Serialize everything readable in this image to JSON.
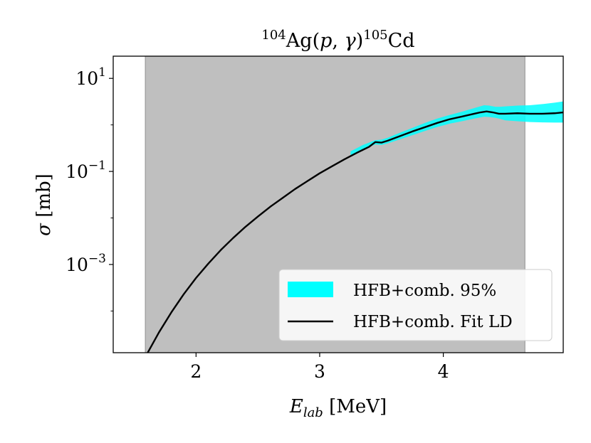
{
  "chart_data": {
    "type": "line",
    "title": "104Ag(p,γ)105Cd",
    "xlabel": "E_lab [MeV]",
    "ylabel": "σ [mb]",
    "x_scale": "linear",
    "y_scale": "log",
    "xlim": [
      1.33,
      4.97
    ],
    "ylim": [
      1.27e-05,
      30
    ],
    "x_ticks": [
      {
        "value": 2,
        "label": "2"
      },
      {
        "value": 3,
        "label": "3"
      },
      {
        "value": 4,
        "label": "4"
      }
    ],
    "y_ticks": [
      {
        "value": 10,
        "base": "10",
        "exp": "1"
      },
      {
        "value": 0.1,
        "base": "10",
        "exp": "−1"
      },
      {
        "value": 0.001,
        "base": "10",
        "exp": "−3"
      }
    ],
    "grid": false,
    "legend_position": "lower-right",
    "shaded_region": {
      "x_start": 1.59,
      "x_end": 4.66,
      "color": "#808080"
    },
    "series": [
      {
        "name": "HFB+comb. 95%",
        "kind": "band",
        "color": "#00ffff",
        "x": [
          3.25,
          3.35,
          3.45,
          3.5,
          3.55,
          3.65,
          3.75,
          3.85,
          3.95,
          4.05,
          4.15,
          4.25,
          4.33,
          4.37,
          4.42,
          4.46,
          4.5,
          4.6,
          4.7,
          4.8,
          4.9,
          4.97
        ],
        "lower": [
          0.22,
          0.3,
          0.38,
          0.37,
          0.4,
          0.49,
          0.6,
          0.74,
          0.9,
          1.06,
          1.2,
          1.37,
          1.5,
          1.48,
          1.42,
          1.35,
          1.25,
          1.2,
          1.15,
          1.13,
          1.12,
          1.12
        ],
        "upper": [
          0.27,
          0.37,
          0.47,
          0.48,
          0.53,
          0.68,
          0.86,
          1.1,
          1.37,
          1.63,
          1.92,
          2.3,
          2.65,
          2.6,
          2.45,
          2.45,
          2.5,
          2.6,
          2.65,
          2.8,
          3.0,
          3.2
        ]
      },
      {
        "name": "HFB+comb. Fit LD",
        "kind": "line",
        "color": "#000000",
        "x": [
          1.6,
          1.7,
          1.8,
          1.9,
          2.0,
          2.1,
          2.2,
          2.3,
          2.4,
          2.5,
          2.6,
          2.7,
          2.8,
          2.9,
          3.0,
          3.1,
          3.2,
          3.3,
          3.4,
          3.45,
          3.5,
          3.55,
          3.65,
          3.75,
          3.85,
          3.95,
          4.05,
          4.15,
          4.25,
          4.3,
          4.35,
          4.4,
          4.45,
          4.5,
          4.6,
          4.7,
          4.8,
          4.9,
          4.97
        ],
        "y": [
          1.15e-05,
          3.47e-05,
          9.33e-05,
          0.000229,
          0.000513,
          0.00105,
          0.00204,
          0.00371,
          0.00646,
          0.0107,
          0.0174,
          0.0269,
          0.0417,
          0.0617,
          0.0912,
          0.129,
          0.182,
          0.251,
          0.339,
          0.427,
          0.416,
          0.457,
          0.575,
          0.724,
          0.891,
          1.1,
          1.32,
          1.51,
          1.74,
          1.86,
          1.95,
          1.86,
          1.74,
          1.74,
          1.78,
          1.74,
          1.74,
          1.78,
          1.86
        ]
      }
    ]
  }
}
